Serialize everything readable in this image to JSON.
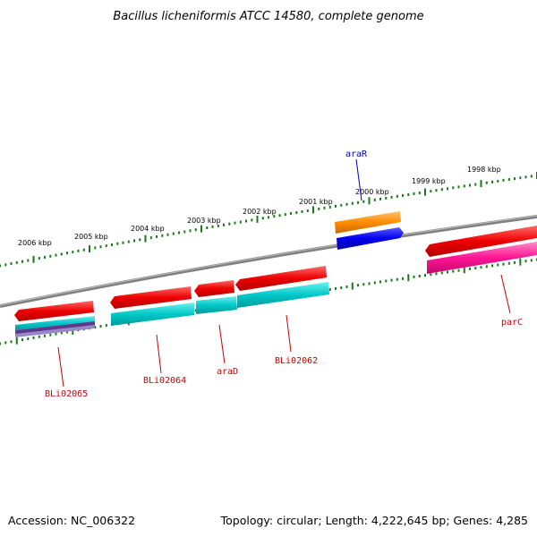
{
  "title": "Bacillus licheniformis ATCC 14580, complete genome",
  "scale_labels": [
    "2006 kbp",
    "2005 kbp",
    "2004 kbp",
    "2003 kbp",
    "2002 kbp",
    "2001 kbp",
    "2000 kbp",
    "1999 kbp",
    "1998 kbp"
  ],
  "gene_labels": [
    {
      "text": "araR",
      "color": "#0000cc"
    },
    {
      "text": "BLi02065",
      "color": "#cc0000"
    },
    {
      "text": "BLi02064",
      "color": "#cc0000"
    },
    {
      "text": "araD",
      "color": "#cc0000"
    },
    {
      "text": "BLi02062",
      "color": "#cc0000"
    },
    {
      "text": "parC",
      "color": "#cc0000"
    }
  ],
  "colors": {
    "backbone": "#808080",
    "tick": "#1a7a1a",
    "cds": "#ee0000",
    "gene_cyan": "#00c8c8",
    "gene_orange": "#ff8c00",
    "gene_blue": "#0000ee",
    "gene_magenta": "#ff1493",
    "gene_purple": "#5a3a8a"
  },
  "footer": {
    "accession": "Accession: NC_006322",
    "topology": "Topology: circular; Length: 4,222,645 bp; Genes: 4,285"
  }
}
